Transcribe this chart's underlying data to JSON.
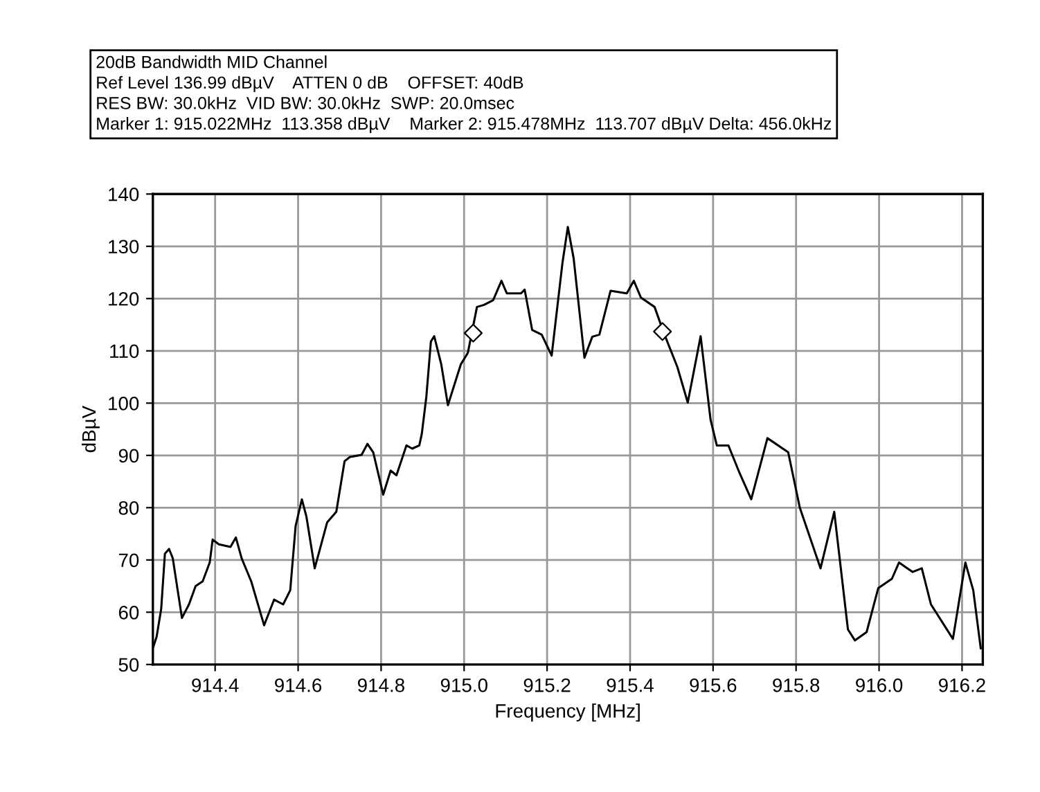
{
  "chart_data": {
    "type": "line",
    "title": "20dB Bandwidth MID Channel",
    "annotations": [
      "Ref Level 136.99 dBµV    ATTEN 0 dB    OFFSET: 40dB",
      "RES BW: 30.0kHz  VID BW: 30.0kHz  SWP: 20.0msec",
      "Marker 1: 915.022MHz  113.358 dBµV    Marker 2: 915.478MHz  113.707 dBµV Delta: 456.0kHz"
    ],
    "xlabel": "Frequency [MHz]",
    "ylabel": "dBµV",
    "xlim": [
      914.25,
      916.25
    ],
    "xticks": [
      914.4,
      914.6,
      914.8,
      {
        "value": 915,
        "label": "915.0"
      },
      915.2,
      915.4,
      915.6,
      915.8,
      {
        "value": 916,
        "label": "916.0"
      },
      916.2
    ],
    "ylim": [
      50,
      140
    ],
    "yticks": [
      50,
      60,
      70,
      80,
      90,
      100,
      110,
      120,
      130,
      140
    ],
    "grid": true,
    "series": [
      {
        "color": "#000000",
        "marker": "none",
        "x": [
          914.25,
          914.259,
          914.27,
          914.279,
          914.289,
          914.298,
          914.32,
          914.337,
          914.353,
          914.37,
          914.387,
          914.394,
          914.409,
          914.437,
          914.45,
          914.464,
          914.487,
          914.518,
          914.542,
          914.564,
          914.581,
          914.594,
          914.609,
          914.62,
          914.64,
          914.67,
          914.692,
          914.712,
          914.725,
          914.753,
          914.767,
          914.781,
          914.805,
          914.823,
          914.837,
          914.861,
          914.875,
          914.892,
          914.898,
          914.909,
          914.92,
          914.928,
          914.945,
          914.961,
          914.992,
          915.009,
          915.031,
          915.048,
          915.07,
          915.09,
          915.103,
          915.137,
          915.146,
          915.164,
          915.187,
          915.211,
          915.237,
          915.25,
          915.264,
          915.29,
          915.309,
          915.326,
          915.353,
          915.392,
          915.409,
          915.426,
          915.459,
          915.481,
          915.514,
          915.539,
          915.57,
          915.594,
          915.609,
          915.637,
          915.664,
          915.692,
          915.731,
          915.781,
          915.809,
          915.859,
          915.892,
          915.925,
          915.942,
          915.97,
          915.998,
          916.031,
          916.048,
          916.081,
          916.103,
          916.125,
          916.178,
          916.208,
          916.227,
          916.245
        ],
        "values": [
          53.1,
          55.3,
          60.6,
          71.2,
          72.1,
          70.3,
          58.9,
          61.5,
          65,
          65.9,
          69.5,
          73.9,
          73,
          72.5,
          74.3,
          70.3,
          65.9,
          57.5,
          62.4,
          61.5,
          64.2,
          76.5,
          81.6,
          78.3,
          68.4,
          77.2,
          79.2,
          88.9,
          89.7,
          90.1,
          92.2,
          90.6,
          82.5,
          87.1,
          86.2,
          91.9,
          91.3,
          91.9,
          94.1,
          101.2,
          111.8,
          112.8,
          107.4,
          99.6,
          107.4,
          109.6,
          118.4,
          118.8,
          119.7,
          123.4,
          121,
          121,
          121.7,
          114,
          113.1,
          109.1,
          126.8,
          133.7,
          127.7,
          108.7,
          112.7,
          113.1,
          121.5,
          121,
          123.4,
          120.2,
          118.4,
          113.5,
          106.9,
          100.1,
          112.8,
          96.8,
          91.9,
          91.9,
          86.6,
          81.6,
          93.3,
          90.6,
          80,
          68.4,
          79.2,
          56.7,
          54.6,
          56.2,
          64.6,
          66.4,
          69.5,
          67.7,
          68.4,
          61.5,
          54.9,
          69.5,
          64.2,
          53.1
        ]
      },
      {
        "type": "scatter",
        "color": "#000000",
        "marker": "diamond",
        "x": [
          915.022,
          915.478
        ],
        "values": [
          113.4,
          113.7
        ]
      }
    ]
  }
}
